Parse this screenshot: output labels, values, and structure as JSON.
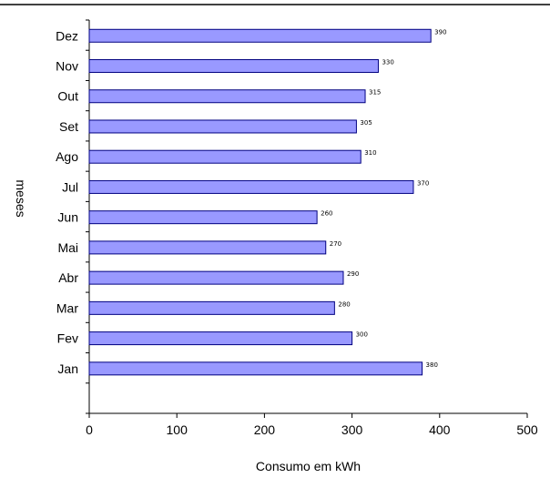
{
  "chart_data": {
    "type": "bar",
    "orientation": "horizontal",
    "categories": [
      "Jan",
      "Fev",
      "Mar",
      "Abr",
      "Mai",
      "Jun",
      "Jul",
      "Ago",
      "Set",
      "Out",
      "Nov",
      "Dez"
    ],
    "values": [
      380,
      300,
      280,
      290,
      270,
      260,
      370,
      310,
      305,
      315,
      330,
      390
    ],
    "data_labels": [
      "380",
      "300",
      "280",
      "290",
      "270",
      "260",
      "370",
      "310",
      "305",
      "315",
      "330",
      "390"
    ],
    "title": "",
    "xlabel": "Consumo em kWh",
    "ylabel": "meses",
    "xlim": [
      0,
      500
    ],
    "xticks": [
      0,
      100,
      200,
      300,
      400,
      500
    ],
    "grid": false,
    "legend": "none",
    "bar_color": "#9999ff",
    "bar_edge_color": "#000080"
  }
}
